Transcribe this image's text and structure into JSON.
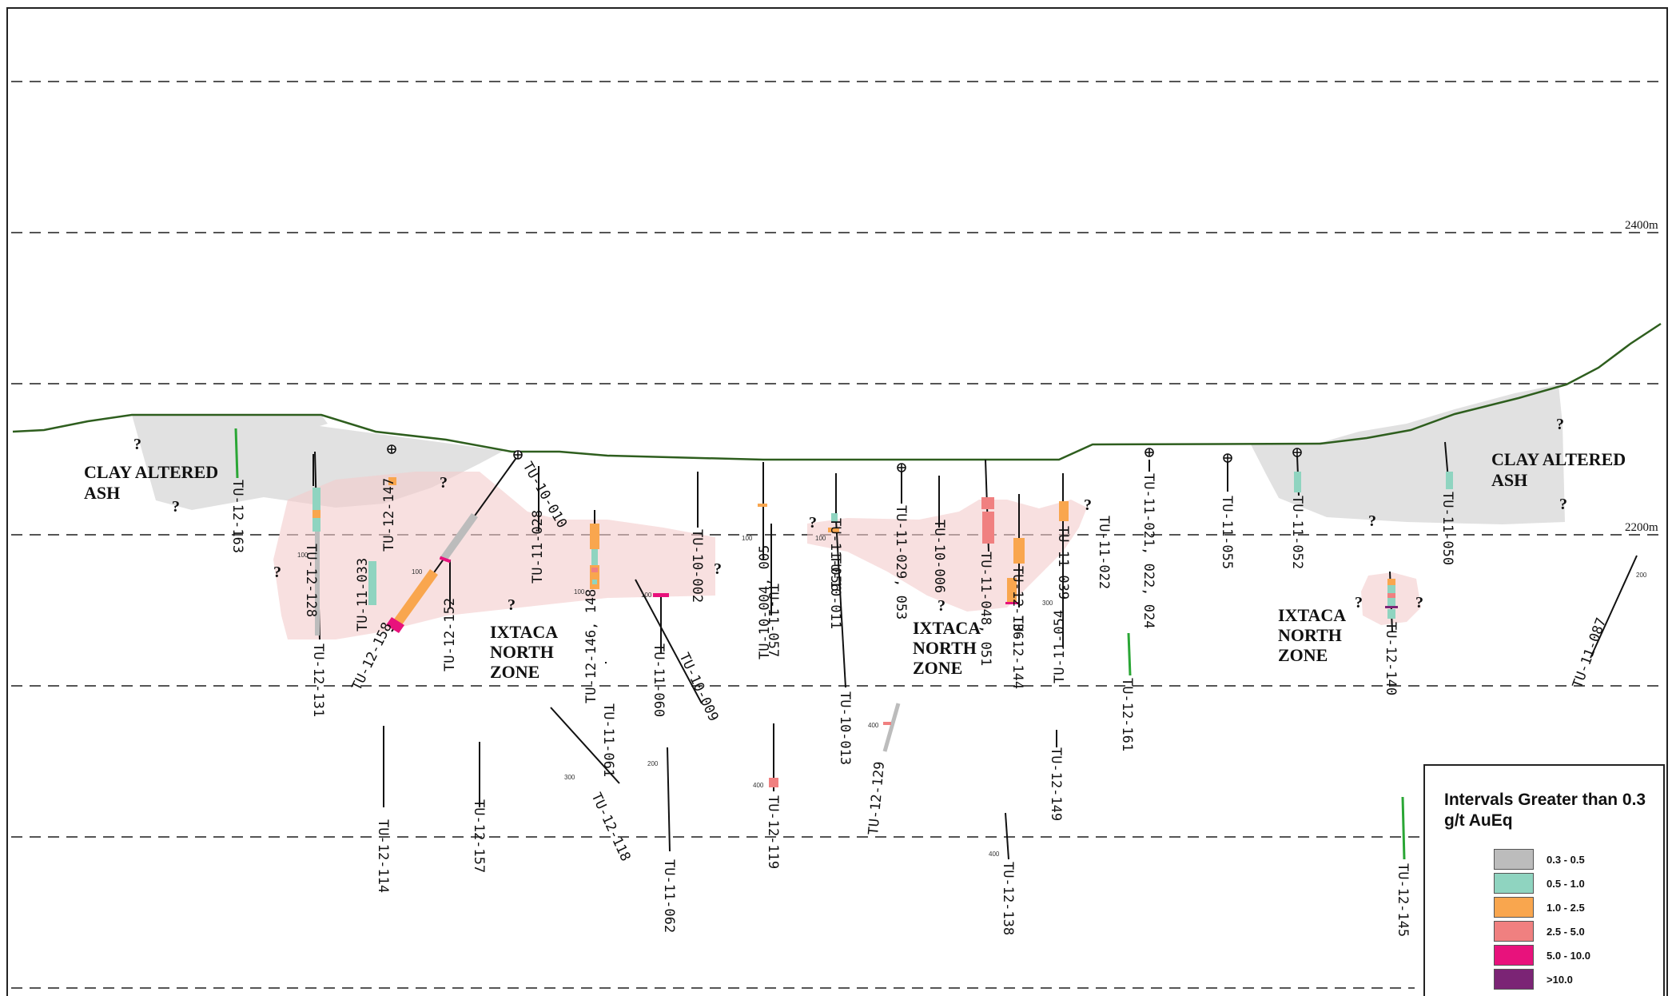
{
  "legend": {
    "title": "Intervals Greater than 0.3 g/t AuEq",
    "items": [
      {
        "label": "0.3 - 0.5",
        "color": "#bcbcbc"
      },
      {
        "label": "0.5 - 1.0",
        "color": "#8fd4c0"
      },
      {
        "label": "1.0 - 2.5",
        "color": "#f9a64e"
      },
      {
        "label": "2.5 - 5.0",
        "color": "#f08080"
      },
      {
        "label": "5.0 - 10.0",
        "color": "#e8127c"
      },
      {
        "label": ">10.0",
        "color": "#7b2475"
      }
    ]
  },
  "elevations": {
    "upper": "2400m",
    "lower": "2200m"
  },
  "zones": {
    "clay_left": [
      "CLAY ALTERED",
      "ASH"
    ],
    "clay_right": [
      "CLAY ALTERED",
      "ASH"
    ],
    "ixtaca_1": [
      "IXTACA",
      "NORTH",
      "ZONE"
    ],
    "ixtaca_2": [
      "IXTACA",
      "NORTH",
      "ZONE"
    ],
    "ixtaca_3": [
      "IXTACA",
      "NORTH",
      "ZONE"
    ]
  },
  "question_mark": "?",
  "depth_marks": {
    "d100": "100",
    "d200": "200",
    "d300": "300",
    "d400": "400"
  },
  "holes": {
    "h163": "TU-12-163",
    "h147": "TU-12-147",
    "h128": "TU-12-128",
    "h131": "TU-12-131",
    "h033": "TU-11-033",
    "h158": "TU-12-158",
    "h152": "TU-12-152",
    "h010": "TU-10-010",
    "h028": "TU-11-028",
    "h146": "TU-12-146, 148",
    "h002": "TU-10-002",
    "h060": "TU-11-060",
    "h009": "TU-10-009",
    "h061": "TU-11-061",
    "h118": "TU-12-118",
    "h114": "TU-12-114",
    "h157": "TU-12-157",
    "h062": "TU-11-062",
    "h004": "TU-10-004, 005",
    "h057": "TU-11-057",
    "h119": "TU-12-119",
    "h056": "TU-11-056",
    "h011": "TU-10-011",
    "h013": "TU-10-013",
    "h029": "TU-11-029, 053",
    "h006": "TU-10-006",
    "h129": "TU-12-129",
    "h048": "TU-11-048, 051",
    "h136": "TU-12-136",
    "h144": "TU-12-144",
    "h039": "TU-11-039",
    "h054": "TU-11-054",
    "h149": "TU-12-149",
    "h138": "TU-12-138",
    "h022": "TU-11-022",
    "h161": "TU-12-161",
    "h021": "TU-11-021, 022, 024",
    "h055": "TU-11-055",
    "h052": "TU-11-052",
    "h050": "TU-11-050",
    "h140": "TU-12-140",
    "h087": "TU-11-087",
    "h145": "TU-12-145"
  }
}
